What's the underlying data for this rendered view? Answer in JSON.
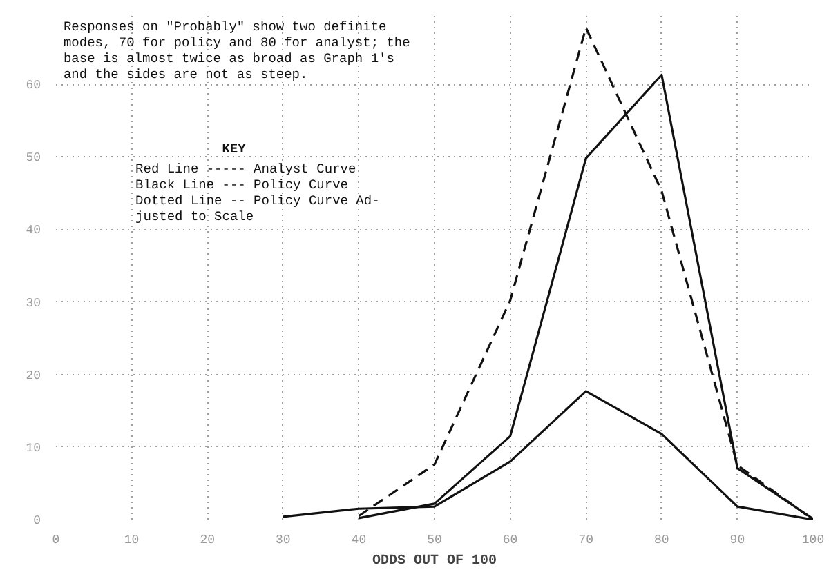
{
  "chart_data": {
    "type": "line",
    "xlabel": "ODDS OUT OF 100",
    "annotations": [
      "     Responses on \"Probably\" show two definite\nmodes, 70 for policy and 80 for analyst; the\nbase is almost twice as broad as Graph 1's\nand the sides are not as steep.",
      "KEY",
      "Red Line ----- Analyst Curve\nBlack Line --- Policy Curve\nDotted Line -- Policy Curve Ad-\n               justed to Scale"
    ],
    "series": [
      {
        "color": "#111111",
        "line_style": "solid",
        "x": [
          40,
          50,
          60,
          70,
          80,
          90,
          100
        ],
        "values": [
          0.2,
          2.2,
          11.5,
          49.8,
          61.3,
          7.1,
          0.1
        ]
      },
      {
        "color": "#111111",
        "line_style": "solid",
        "x": [
          30,
          40,
          50,
          60,
          70,
          80,
          90,
          100
        ],
        "values": [
          0.4,
          1.5,
          1.8,
          8.0,
          17.7,
          11.8,
          1.8,
          0
        ]
      },
      {
        "color": "#111111",
        "line_style": "dashed",
        "x": [
          40,
          50,
          60,
          70,
          80,
          90,
          100
        ],
        "values": [
          0.5,
          7.6,
          30.2,
          67.8,
          45.3,
          7.5,
          0
        ]
      }
    ],
    "xlim": [
      0,
      100
    ],
    "ylim": [
      0,
      70
    ],
    "xticks": [
      0,
      10,
      20,
      30,
      40,
      50,
      60,
      70,
      80,
      90,
      100
    ],
    "yticks": [
      0,
      10,
      20,
      30,
      40,
      50,
      60
    ],
    "grid": true
  }
}
